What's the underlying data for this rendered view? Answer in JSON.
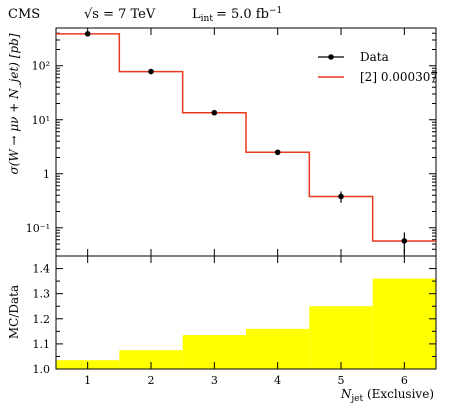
{
  "header": {
    "experiment": "CMS",
    "energy_label": "√s = 7 TeV",
    "lumi_label": "L",
    "lumi_subscript": "int",
    "lumi_value": "= 5.0 fb",
    "lumi_exponent": "−1"
  },
  "chart_data": [
    {
      "type": "line",
      "panel": "main",
      "ylabel": "σ(W → μν + N_jet) [pb]",
      "yscale": "log",
      "ylim": [
        0.03,
        500
      ],
      "xlim": [
        0.5,
        6.5
      ],
      "y_tick_labels": [
        "10²",
        "10¹",
        "1",
        "10⁻¹"
      ],
      "legend_position": "top-right",
      "series": [
        {
          "name": "Data",
          "style": "points-with-errorbars",
          "color": "#000000",
          "x": [
            1,
            2,
            3,
            4,
            5,
            6
          ],
          "values": [
            390,
            78,
            13.5,
            2.5,
            0.38,
            0.057
          ],
          "err_low": [
            15,
            4,
            0.9,
            0.25,
            0.09,
            0.025
          ],
          "err_high": [
            15,
            4,
            0.9,
            0.25,
            0.09,
            0.025
          ]
        },
        {
          "name": "[2] 0.000307",
          "style": "step",
          "color": "#e8391d",
          "bin_edges": [
            0.5,
            1.5,
            2.5,
            3.5,
            4.5,
            5.5,
            6.5
          ],
          "values": [
            390,
            78,
            13.5,
            2.5,
            0.38,
            0.057
          ]
        }
      ]
    },
    {
      "type": "bar",
      "panel": "ratio",
      "ylabel": "MC/Data",
      "xlabel_main": "N",
      "xlabel_sub": "jet",
      "xlabel_suffix": " (Exclusive)",
      "ylim": [
        1.0,
        1.45
      ],
      "xlim": [
        0.5,
        6.5
      ],
      "y_ticks": [
        1.0,
        1.1,
        1.2,
        1.3,
        1.4
      ],
      "y_tick_labels": [
        "1.0",
        "1.1",
        "1.2",
        "1.3",
        "1.4"
      ],
      "categories": [
        "1",
        "2",
        "3",
        "4",
        "5",
        "6"
      ],
      "bin_edges": [
        0.5,
        1.5,
        2.5,
        3.5,
        4.5,
        5.5,
        6.5
      ],
      "values": [
        1.035,
        1.075,
        1.135,
        1.16,
        1.25,
        1.36
      ],
      "color": "#ffff00"
    }
  ]
}
